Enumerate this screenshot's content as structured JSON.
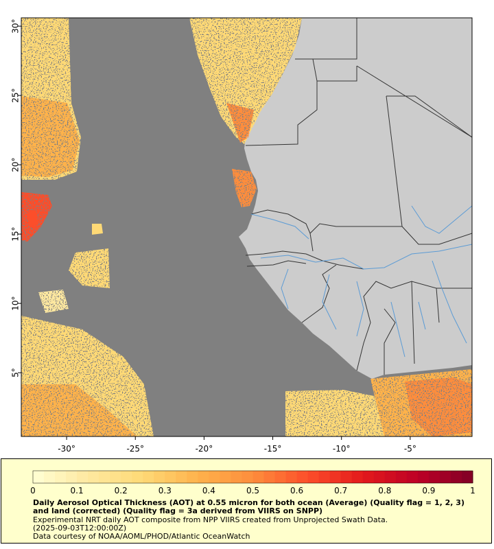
{
  "map": {
    "x_ticks": [
      {
        "lon": -30,
        "label": "-30°"
      },
      {
        "lon": -25,
        "label": "-25°"
      },
      {
        "lon": -20,
        "label": "-20°"
      },
      {
        "lon": -15,
        "label": "-15°"
      },
      {
        "lon": -10,
        "label": "-10°"
      },
      {
        "lon": -5,
        "label": "-5°"
      }
    ],
    "y_ticks": [
      {
        "lat": 30,
        "label": "30°"
      },
      {
        "lat": 25,
        "label": "25°"
      },
      {
        "lat": 20,
        "label": "20°"
      },
      {
        "lat": 15,
        "label": "15°"
      },
      {
        "lat": 10,
        "label": "10°"
      },
      {
        "lat": 5,
        "label": "5°"
      }
    ],
    "lon_range": [
      -33.3,
      -0.5
    ],
    "lat_range": [
      0.4,
      30.6
    ],
    "colors": {
      "no_data": "#808080",
      "land": "#cccccc",
      "border": "#333333",
      "river": "#5b9bd5"
    }
  },
  "legend": {
    "ticks": [
      "0",
      "0.1",
      "0.2",
      "0.3",
      "0.4",
      "0.5",
      "0.6",
      "0.7",
      "0.8",
      "0.9",
      "1"
    ],
    "scale": [
      "#ffffd4",
      "#fee8a0",
      "#fed976",
      "#feb24c",
      "#fd8d3c",
      "#fc4e2a",
      "#e31a1c",
      "#bd0026",
      "#800026"
    ],
    "title": "Daily Aerosol Optical Thickness (AOT) at 0.55 micron for both ocean (Average) (Quality flag = 1, 2, 3) and land (corrected) (Quality flag = 3a derived from VIIRS on SNPP)",
    "description_lines": [
      "Experimental NRT daily AOT composite from NPP VIIRS created from Unprojected Swath Data.",
      "(2025-09-03T12:00:00Z)",
      "Data courtesy of NOAA/AOML/PHOD/Atlantic OceanWatch"
    ]
  }
}
